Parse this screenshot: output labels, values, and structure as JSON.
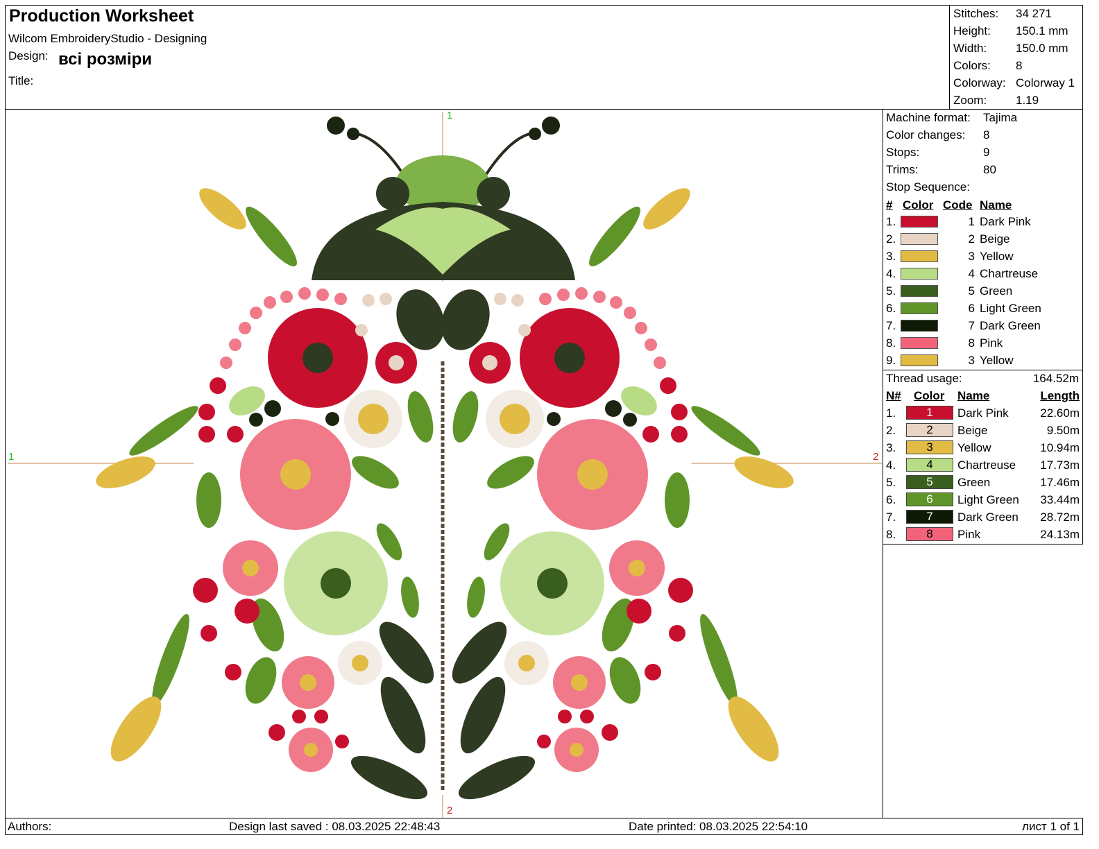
{
  "header": {
    "title": "Production Worksheet",
    "software": "Wilcom EmbroideryStudio - Designing",
    "design_label": "Design:",
    "design_name": "всі розміри",
    "title_label": "Title:",
    "title_value": ""
  },
  "summary": [
    {
      "label": "Stitches:",
      "value": "34 271"
    },
    {
      "label": "Height:",
      "value": "150.1 mm"
    },
    {
      "label": "Width:",
      "value": "150.0 mm"
    },
    {
      "label": "Colors:",
      "value": "8"
    },
    {
      "label": "Colorway:",
      "value": "Colorway 1"
    },
    {
      "label": "Zoom:",
      "value": "1.19"
    }
  ],
  "machine": [
    {
      "label": "Machine format:",
      "value": "Tajima"
    },
    {
      "label": "Color changes:",
      "value": "8"
    },
    {
      "label": "Stops:",
      "value": "9"
    },
    {
      "label": "Trims:",
      "value": "80"
    }
  ],
  "stop_sequence": {
    "title": "Stop Sequence:",
    "headers": [
      "#",
      "Color",
      "Code",
      "Name"
    ],
    "rows": [
      {
        "num": "1.",
        "color": "#c8102e",
        "code": "1",
        "name": "Dark Pink"
      },
      {
        "num": "2.",
        "color": "#e8d4c4",
        "code": "2",
        "name": "Beige"
      },
      {
        "num": "3.",
        "color": "#e2bb45",
        "code": "3",
        "name": "Yellow"
      },
      {
        "num": "4.",
        "color": "#b8dc85",
        "code": "4",
        "name": "Chartreuse"
      },
      {
        "num": "5.",
        "color": "#3a5e1e",
        "code": "5",
        "name": "Green"
      },
      {
        "num": "6.",
        "color": "#5f9528",
        "code": "6",
        "name": "Light Green"
      },
      {
        "num": "7.",
        "color": "#0e1a06",
        "code": "7",
        "name": "Dark Green"
      },
      {
        "num": "8.",
        "color": "#f2637a",
        "code": "8",
        "name": "Pink"
      },
      {
        "num": "9.",
        "color": "#e2bb45",
        "code": "3",
        "name": "Yellow"
      }
    ]
  },
  "thread_usage": {
    "label": "Thread usage:",
    "total": "164.52m",
    "headers": [
      "N#",
      "Color",
      "Name",
      "Length"
    ],
    "rows": [
      {
        "num": "1.",
        "code": "1",
        "color": "#c8102e",
        "text_color": "#ffffff",
        "name": "Dark Pink",
        "length": "22.60m"
      },
      {
        "num": "2.",
        "code": "2",
        "color": "#e8d4c4",
        "text_color": "#000000",
        "name": "Beige",
        "length": "9.50m"
      },
      {
        "num": "3.",
        "code": "3",
        "color": "#e2bb45",
        "text_color": "#000000",
        "name": "Yellow",
        "length": "10.94m"
      },
      {
        "num": "4.",
        "code": "4",
        "color": "#b8dc85",
        "text_color": "#000000",
        "name": "Chartreuse",
        "length": "17.73m"
      },
      {
        "num": "5.",
        "code": "5",
        "color": "#3a5e1e",
        "text_color": "#ffffff",
        "name": "Green",
        "length": "17.46m"
      },
      {
        "num": "6.",
        "code": "6",
        "color": "#5f9528",
        "text_color": "#ffffff",
        "name": "Light Green",
        "length": "33.44m"
      },
      {
        "num": "7.",
        "code": "7",
        "color": "#0e1a06",
        "text_color": "#ffffff",
        "name": "Dark Green",
        "length": "28.72m"
      },
      {
        "num": "8.",
        "code": "8",
        "color": "#f2637a",
        "text_color": "#000000",
        "name": "Pink",
        "length": "24.13m"
      }
    ]
  },
  "canvas": {
    "marker_top": "1",
    "marker_bottom": "2",
    "marker_left": "1",
    "marker_right": "2"
  },
  "footer": {
    "authors": "Authors:",
    "saved": "Design last saved : 08.03.2025 22:48:43",
    "printed": "Date printed: 08.03.2025 22:54:10",
    "page": "лист 1 of 1"
  }
}
